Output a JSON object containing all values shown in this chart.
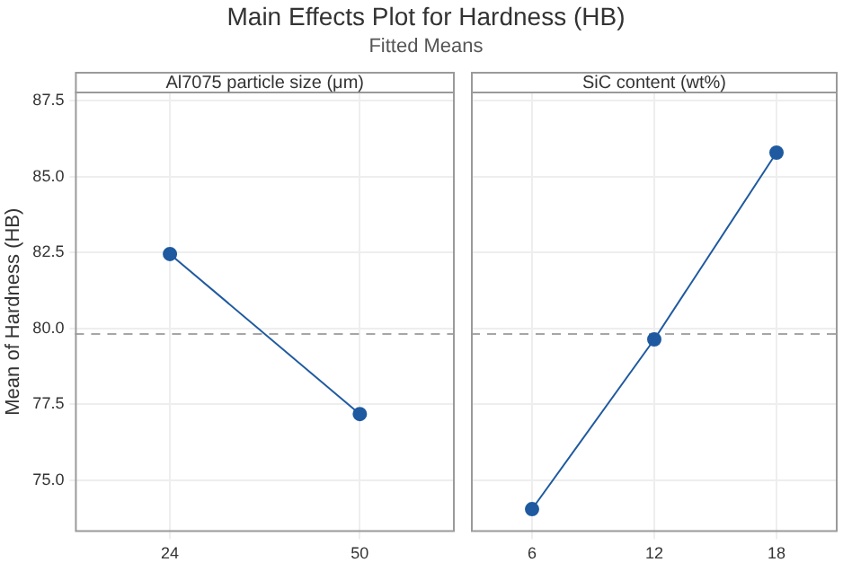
{
  "chart_data": [
    {
      "type": "line",
      "title": "Main Effects Plot for Hardness (HB)",
      "subtitle": "Fitted Means",
      "xlabel": "Al7075 particle size (μm)",
      "ylabel": "Mean of Hardness (HB)",
      "categories": [
        "24",
        "50"
      ],
      "series": [
        {
          "color": "#1f5aa0",
          "values": [
            82.45,
            77.18
          ]
        }
      ],
      "ylim": [
        73.3,
        87.8
      ],
      "yticks": [
        {
          "value": 75,
          "label": "75.0"
        },
        77.5,
        {
          "value": 80,
          "label": "80.0"
        },
        82.5,
        {
          "value": 85,
          "label": "85.0"
        },
        87.5
      ],
      "ref_lines": [
        {
          "axis": "y",
          "value": 79.82,
          "color": "#a6a6a6",
          "line_style": "dashed"
        }
      ],
      "grid": true,
      "marker": "circle",
      "legend": false
    },
    {
      "type": "line",
      "xlabel": "SiC content (wt%)",
      "categories": [
        "6",
        "12",
        "18"
      ],
      "series": [
        {
          "color": "#1f5aa0",
          "values": [
            74.05,
            79.64,
            85.79
          ]
        }
      ],
      "ylim": [
        73.3,
        87.8
      ],
      "yticks": [
        75,
        77.5,
        80,
        82.5,
        85,
        87.5
      ],
      "ref_lines": [
        {
          "axis": "y",
          "value": 79.82,
          "color": "#a6a6a6",
          "line_style": "dashed"
        }
      ],
      "grid": true,
      "marker": "circle",
      "legend": false,
      "tick_labels": "x"
    }
  ]
}
